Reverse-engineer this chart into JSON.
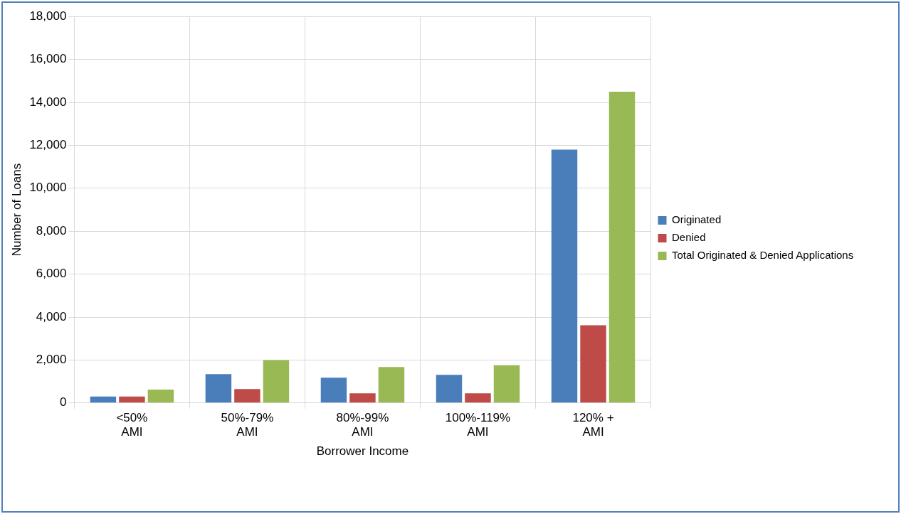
{
  "chart_data": {
    "type": "bar",
    "xlabel": "Borrower Income",
    "ylabel": "Number of Loans",
    "categories": [
      "<50% AMI",
      "50%-79% AMI",
      "80%-99% AMI",
      "100%-119% AMI",
      "120% + AMI"
    ],
    "series": [
      {
        "name": "Originated",
        "color": "#4a7ebb",
        "values": [
          300,
          1340,
          1180,
          1310,
          11800
        ]
      },
      {
        "name": "Denied",
        "color": "#be4b48",
        "values": [
          300,
          650,
          450,
          450,
          3620
        ]
      },
      {
        "name": "Total Originated & Denied Applications",
        "color": "#98b954",
        "values": [
          620,
          2000,
          1670,
          1760,
          14500
        ]
      }
    ],
    "ylim": [
      0,
      18000
    ],
    "yticks": [
      0,
      {
        "value": 2000,
        "label": "2,000"
      },
      {
        "value": 4000,
        "label": "4,000"
      },
      {
        "value": 6000,
        "label": "6,000"
      },
      {
        "value": 8000,
        "label": "8,000"
      },
      {
        "value": 10000,
        "label": "10,000"
      },
      {
        "value": 12000,
        "label": "12,000"
      },
      {
        "value": 14000,
        "label": "14,000"
      },
      {
        "value": 16000,
        "label": "16,000"
      },
      {
        "value": 18000,
        "label": "18,000"
      }
    ],
    "grid": true,
    "legend": "right"
  }
}
